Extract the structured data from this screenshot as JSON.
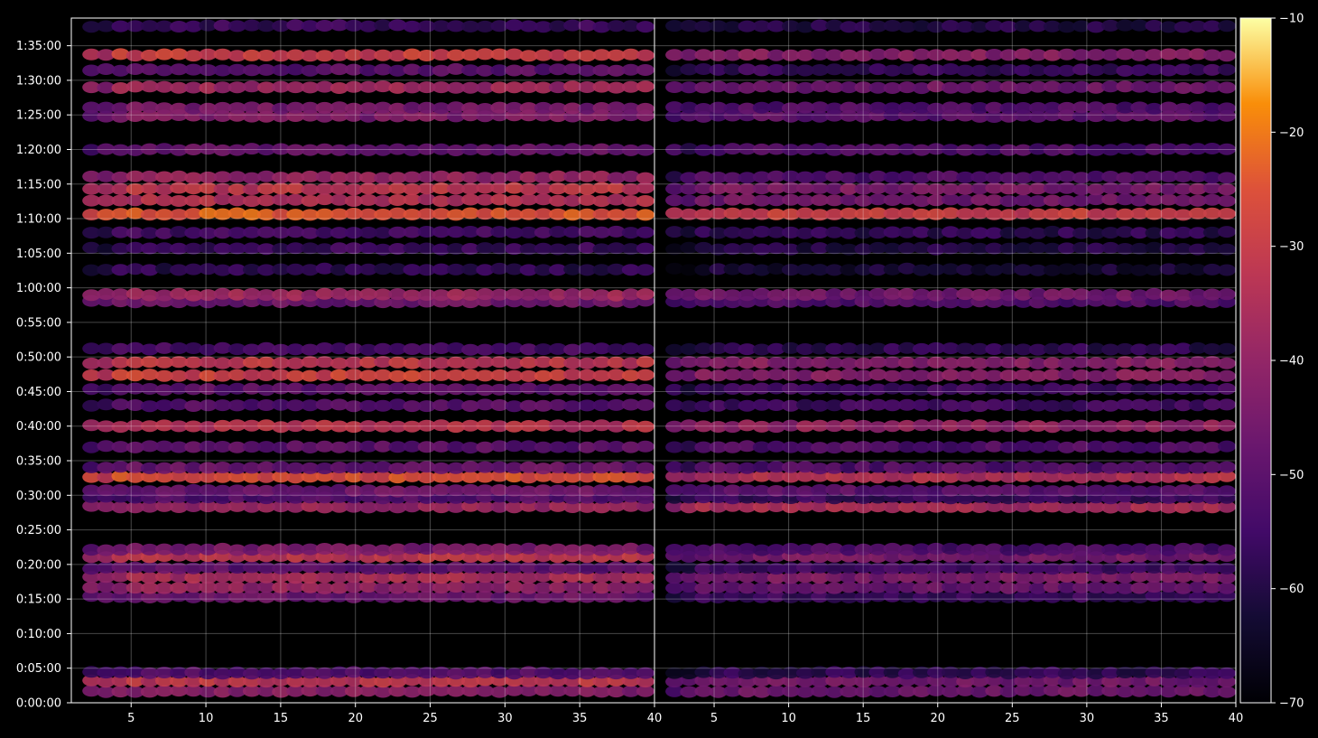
{
  "chart_data": {
    "type": "heatmap",
    "colormap": "inferno",
    "background": "#000000",
    "panels": [
      {
        "x_ticks": [
          5,
          10,
          15,
          20,
          25,
          30,
          35,
          40
        ],
        "x_range": [
          1,
          40
        ]
      },
      {
        "x_ticks": [
          5,
          10,
          15,
          20,
          25,
          30,
          35,
          40
        ],
        "x_range": [
          1,
          40
        ]
      }
    ],
    "y_ticks": [
      "0:00:00",
      "0:05:00",
      "0:10:00",
      "0:15:00",
      "0:20:00",
      "0:25:00",
      "0:30:00",
      "0:35:00",
      "0:40:00",
      "0:45:00",
      "0:50:00",
      "0:55:00",
      "1:00:00",
      "1:05:00",
      "1:10:00",
      "1:15:00",
      "1:20:00",
      "1:25:00",
      "1:30:00",
      "1:35:00"
    ],
    "y_range_seconds": [
      0,
      5940
    ],
    "grid": true,
    "colorbar": {
      "ticks": [
        -10,
        -20,
        -30,
        -40,
        -50,
        -60,
        -70
      ],
      "tick_labels": [
        "−10",
        "−20",
        "−30",
        "−40",
        "−50",
        "−60",
        "−70"
      ],
      "range": [
        -70,
        -10
      ]
    },
    "bands": [
      {
        "t": 100,
        "left": -42,
        "right": -47
      },
      {
        "t": 190,
        "left": -32,
        "right": -46
      },
      {
        "t": 260,
        "left": -52,
        "right": -58
      },
      {
        "t": 920,
        "left": -47,
        "right": -56
      },
      {
        "t": 1000,
        "left": -40,
        "right": -48
      },
      {
        "t": 1090,
        "left": -36,
        "right": -44
      },
      {
        "t": 1170,
        "left": -50,
        "right": -55
      },
      {
        "t": 1270,
        "left": -33,
        "right": -45
      },
      {
        "t": 1330,
        "left": -45,
        "right": -53
      },
      {
        "t": 1700,
        "left": -38,
        "right": -36
      },
      {
        "t": 1780,
        "left": -52,
        "right": -56
      },
      {
        "t": 1840,
        "left": -47,
        "right": -50
      },
      {
        "t": 1960,
        "left": -26,
        "right": -34
      },
      {
        "t": 2040,
        "left": -48,
        "right": -52
      },
      {
        "t": 2220,
        "left": -50,
        "right": -52
      },
      {
        "t": 2400,
        "left": -33,
        "right": -40
      },
      {
        "t": 2580,
        "left": -51,
        "right": -55
      },
      {
        "t": 2720,
        "left": -50,
        "right": -55
      },
      {
        "t": 2840,
        "left": -29,
        "right": -42
      },
      {
        "t": 2950,
        "left": -32,
        "right": -42
      },
      {
        "t": 3070,
        "left": -54,
        "right": -58
      },
      {
        "t": 3480,
        "left": -47,
        "right": -52
      },
      {
        "t": 3540,
        "left": -38,
        "right": -46
      },
      {
        "t": 3760,
        "left": -58,
        "right": -62
      },
      {
        "t": 3940,
        "left": -56,
        "right": -60
      },
      {
        "t": 4080,
        "left": -54,
        "right": -58
      },
      {
        "t": 4240,
        "left": -24,
        "right": -30
      },
      {
        "t": 4360,
        "left": -34,
        "right": -46
      },
      {
        "t": 4460,
        "left": -32,
        "right": -44
      },
      {
        "t": 4560,
        "left": -40,
        "right": -52
      },
      {
        "t": 4800,
        "left": -48,
        "right": -52
      },
      {
        "t": 5090,
        "left": -44,
        "right": -50
      },
      {
        "t": 5160,
        "left": -45,
        "right": -52
      },
      {
        "t": 5340,
        "left": -38,
        "right": -46
      },
      {
        "t": 5490,
        "left": -50,
        "right": -56
      },
      {
        "t": 5620,
        "left": -30,
        "right": -42
      },
      {
        "t": 5870,
        "left": -56,
        "right": -60
      }
    ]
  }
}
